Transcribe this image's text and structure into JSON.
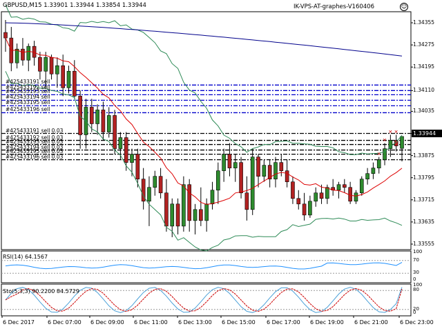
{
  "header": {
    "symbol_info": "GBPUSD,M15  1.33901 1.33944 1.33854 1.33944",
    "expert_name": "IK-VPS-AT-graphes-V160406",
    "smiley_icon": "smiley-face-icon"
  },
  "price_axis": {
    "labels": [
      "1.34355",
      "1.34275",
      "1.34195",
      "1.34110",
      "1.34035",
      "1.33955",
      "1.33875",
      "1.33795",
      "1.33715",
      "1.33635",
      "1.33555"
    ],
    "current_price": "1.33944"
  },
  "time_axis": {
    "labels": [
      "6 Dec 2017",
      "6 Dec 07:00",
      "6 Dec 09:00",
      "6 Dec 11:00",
      "6 Dec 13:00",
      "6 Dec 15:00",
      "6 Dec 17:00",
      "6 Dec 19:00",
      "6 Dec 21:00",
      "6 Dec 23:00"
    ]
  },
  "order_labels": {
    "upper_group": [
      "#425433191 sell",
      "#425433192 sell",
      "#425433193 sell",
      "#425433194 sell",
      "#425433195 sell",
      "#425433196 sell"
    ],
    "lower_group": [
      "#425433191 sell 0.03",
      "#425433192 sell 0.03",
      "#425433193 sell 0.03",
      "#425433194 sell 0.03",
      "#425433195 sell 0.03",
      "#425433196 sell 0.03"
    ]
  },
  "rsi": {
    "label": "RSI(14) 64.1567",
    "levels": [
      "100",
      "70",
      "30",
      "0"
    ]
  },
  "stochastic": {
    "label": "Sto(5,3,3) 90.2200 84.5729",
    "levels": [
      "100",
      "80",
      "20",
      "0"
    ]
  },
  "colors": {
    "bull": "#2e8b2e",
    "bear": "#b22222",
    "ma_slow": "#00008b",
    "ma_fast": "#dd0000",
    "bands": "#2e8b57",
    "order_lines_upper": "#0000cc",
    "order_lines_lower": "#000000",
    "rsi_line": "#1e90ff",
    "sto_main": "#4aa0d8",
    "sto_signal": "#cc0000"
  },
  "chart_data": {
    "type": "candlestick",
    "title": "GBPUSD,M15",
    "xlabel": "",
    "ylabel": "",
    "ylim": [
      1.33535,
      1.34395
    ],
    "ohlc_latest": {
      "open": 1.33901,
      "high": 1.33944,
      "low": 1.33854,
      "close": 1.33944
    },
    "candles": [
      {
        "o": 1.3432,
        "h": 1.34365,
        "l": 1.3425,
        "c": 1.343
      },
      {
        "o": 1.343,
        "h": 1.3434,
        "l": 1.3418,
        "c": 1.3421
      },
      {
        "o": 1.3421,
        "h": 1.3428,
        "l": 1.3419,
        "c": 1.3426
      },
      {
        "o": 1.3426,
        "h": 1.343,
        "l": 1.342,
        "c": 1.3422
      },
      {
        "o": 1.3422,
        "h": 1.3428,
        "l": 1.3418,
        "c": 1.3427
      },
      {
        "o": 1.3427,
        "h": 1.3429,
        "l": 1.342,
        "c": 1.3423
      },
      {
        "o": 1.3423,
        "h": 1.3425,
        "l": 1.3415,
        "c": 1.3418
      },
      {
        "o": 1.3418,
        "h": 1.3425,
        "l": 1.3412,
        "c": 1.3423
      },
      {
        "o": 1.3423,
        "h": 1.3424,
        "l": 1.3415,
        "c": 1.3417
      },
      {
        "o": 1.3417,
        "h": 1.3423,
        "l": 1.3412,
        "c": 1.342
      },
      {
        "o": 1.342,
        "h": 1.3424,
        "l": 1.3409,
        "c": 1.3412
      },
      {
        "o": 1.3412,
        "h": 1.342,
        "l": 1.341,
        "c": 1.3418
      },
      {
        "o": 1.3418,
        "h": 1.3422,
        "l": 1.3408,
        "c": 1.3409
      },
      {
        "o": 1.3409,
        "h": 1.3411,
        "l": 1.339,
        "c": 1.3395
      },
      {
        "o": 1.3395,
        "h": 1.3408,
        "l": 1.339,
        "c": 1.3405
      },
      {
        "o": 1.3405,
        "h": 1.3408,
        "l": 1.3396,
        "c": 1.3399
      },
      {
        "o": 1.3399,
        "h": 1.3406,
        "l": 1.3395,
        "c": 1.3404
      },
      {
        "o": 1.3404,
        "h": 1.3407,
        "l": 1.3393,
        "c": 1.3396
      },
      {
        "o": 1.3396,
        "h": 1.3405,
        "l": 1.3394,
        "c": 1.3402
      },
      {
        "o": 1.3402,
        "h": 1.3404,
        "l": 1.3388,
        "c": 1.339
      },
      {
        "o": 1.339,
        "h": 1.3396,
        "l": 1.3386,
        "c": 1.3394
      },
      {
        "o": 1.3394,
        "h": 1.3396,
        "l": 1.3382,
        "c": 1.3385
      },
      {
        "o": 1.3385,
        "h": 1.339,
        "l": 1.338,
        "c": 1.3388
      },
      {
        "o": 1.3388,
        "h": 1.339,
        "l": 1.3376,
        "c": 1.3379
      },
      {
        "o": 1.3379,
        "h": 1.3383,
        "l": 1.3368,
        "c": 1.3371
      },
      {
        "o": 1.3371,
        "h": 1.338,
        "l": 1.3362,
        "c": 1.3376
      },
      {
        "o": 1.3376,
        "h": 1.3382,
        "l": 1.3373,
        "c": 1.338
      },
      {
        "o": 1.338,
        "h": 1.3383,
        "l": 1.3372,
        "c": 1.3374
      },
      {
        "o": 1.3374,
        "h": 1.3379,
        "l": 1.336,
        "c": 1.3362
      },
      {
        "o": 1.3362,
        "h": 1.3372,
        "l": 1.3358,
        "c": 1.337
      },
      {
        "o": 1.337,
        "h": 1.3372,
        "l": 1.3359,
        "c": 1.3362
      },
      {
        "o": 1.3362,
        "h": 1.338,
        "l": 1.336,
        "c": 1.3377
      },
      {
        "o": 1.3377,
        "h": 1.3379,
        "l": 1.336,
        "c": 1.3364
      },
      {
        "o": 1.3364,
        "h": 1.337,
        "l": 1.3359,
        "c": 1.3368
      },
      {
        "o": 1.3368,
        "h": 1.3376,
        "l": 1.3362,
        "c": 1.3364
      },
      {
        "o": 1.3364,
        "h": 1.3372,
        "l": 1.336,
        "c": 1.337
      },
      {
        "o": 1.337,
        "h": 1.3378,
        "l": 1.3368,
        "c": 1.3375
      },
      {
        "o": 1.3375,
        "h": 1.3385,
        "l": 1.337,
        "c": 1.3382
      },
      {
        "o": 1.3382,
        "h": 1.339,
        "l": 1.3378,
        "c": 1.3388
      },
      {
        "o": 1.3388,
        "h": 1.3392,
        "l": 1.338,
        "c": 1.3383
      },
      {
        "o": 1.3383,
        "h": 1.3388,
        "l": 1.3378,
        "c": 1.3385
      },
      {
        "o": 1.3385,
        "h": 1.3387,
        "l": 1.3372,
        "c": 1.3374
      },
      {
        "o": 1.3374,
        "h": 1.338,
        "l": 1.3364,
        "c": 1.3368
      },
      {
        "o": 1.3368,
        "h": 1.339,
        "l": 1.3366,
        "c": 1.3387
      },
      {
        "o": 1.3387,
        "h": 1.3388,
        "l": 1.3376,
        "c": 1.338
      },
      {
        "o": 1.338,
        "h": 1.3386,
        "l": 1.3378,
        "c": 1.3384
      },
      {
        "o": 1.3384,
        "h": 1.3386,
        "l": 1.3376,
        "c": 1.3379
      },
      {
        "o": 1.3379,
        "h": 1.3387,
        "l": 1.3376,
        "c": 1.3385
      },
      {
        "o": 1.3385,
        "h": 1.3388,
        "l": 1.338,
        "c": 1.3382
      },
      {
        "o": 1.3382,
        "h": 1.3386,
        "l": 1.3376,
        "c": 1.3378
      },
      {
        "o": 1.3378,
        "h": 1.338,
        "l": 1.337,
        "c": 1.3372
      },
      {
        "o": 1.3372,
        "h": 1.3375,
        "l": 1.3368,
        "c": 1.337
      },
      {
        "o": 1.337,
        "h": 1.3374,
        "l": 1.3364,
        "c": 1.3366
      },
      {
        "o": 1.3366,
        "h": 1.3373,
        "l": 1.3365,
        "c": 1.3371
      },
      {
        "o": 1.3371,
        "h": 1.3376,
        "l": 1.3369,
        "c": 1.3374
      },
      {
        "o": 1.3374,
        "h": 1.3377,
        "l": 1.337,
        "c": 1.3372
      },
      {
        "o": 1.3372,
        "h": 1.3377,
        "l": 1.337,
        "c": 1.3376
      },
      {
        "o": 1.3376,
        "h": 1.3379,
        "l": 1.3373,
        "c": 1.3375
      },
      {
        "o": 1.3375,
        "h": 1.3378,
        "l": 1.3372,
        "c": 1.3377
      },
      {
        "o": 1.3377,
        "h": 1.3379,
        "l": 1.3374,
        "c": 1.3376
      },
      {
        "o": 1.3376,
        "h": 1.3378,
        "l": 1.337,
        "c": 1.3371
      },
      {
        "o": 1.3371,
        "h": 1.3375,
        "l": 1.337,
        "c": 1.3374
      },
      {
        "o": 1.3374,
        "h": 1.338,
        "l": 1.3373,
        "c": 1.3379
      },
      {
        "o": 1.3379,
        "h": 1.3383,
        "l": 1.3377,
        "c": 1.3381
      },
      {
        "o": 1.3381,
        "h": 1.3385,
        "l": 1.3379,
        "c": 1.3383
      },
      {
        "o": 1.3383,
        "h": 1.3387,
        "l": 1.3381,
        "c": 1.3386
      },
      {
        "o": 1.3386,
        "h": 1.3392,
        "l": 1.3384,
        "c": 1.339
      },
      {
        "o": 1.339,
        "h": 1.3395,
        "l": 1.3387,
        "c": 1.3393
      },
      {
        "o": 1.3393,
        "h": 1.3395,
        "l": 1.3389,
        "c": 1.3391
      },
      {
        "o": 1.33901,
        "h": 1.33944,
        "l": 1.33854,
        "c": 1.33944
      }
    ],
    "series": [
      {
        "name": "MA slow (blue)",
        "values_start": 1.34355,
        "values_end": 1.34235
      },
      {
        "name": "MA fast (red)",
        "values_start": 1.3427,
        "values_end": 1.3382
      },
      {
        "name": "Bollinger upper (green)",
        "values_start": 1.3433,
        "values_end": 1.3395
      },
      {
        "name": "Bollinger lower (green)",
        "values_start": 1.3418,
        "values_end": 1.3366
      }
    ],
    "order_levels_upper": [
      1.3413,
      1.3411,
      1.34095,
      1.34075,
      1.34055,
      1.3403
    ],
    "order_levels_lower": [
      1.33955,
      1.3393,
      1.33915,
      1.33895,
      1.3388,
      1.3386
    ],
    "indicators": [
      {
        "name": "RSI(14)",
        "value": 64.1567,
        "levels": [
          30,
          70
        ],
        "range": [
          0,
          100
        ]
      },
      {
        "name": "Sto(5,3,3)",
        "main": 90.22,
        "signal": 84.5729,
        "levels": [
          20,
          80
        ],
        "range": [
          0,
          100
        ]
      }
    ]
  }
}
